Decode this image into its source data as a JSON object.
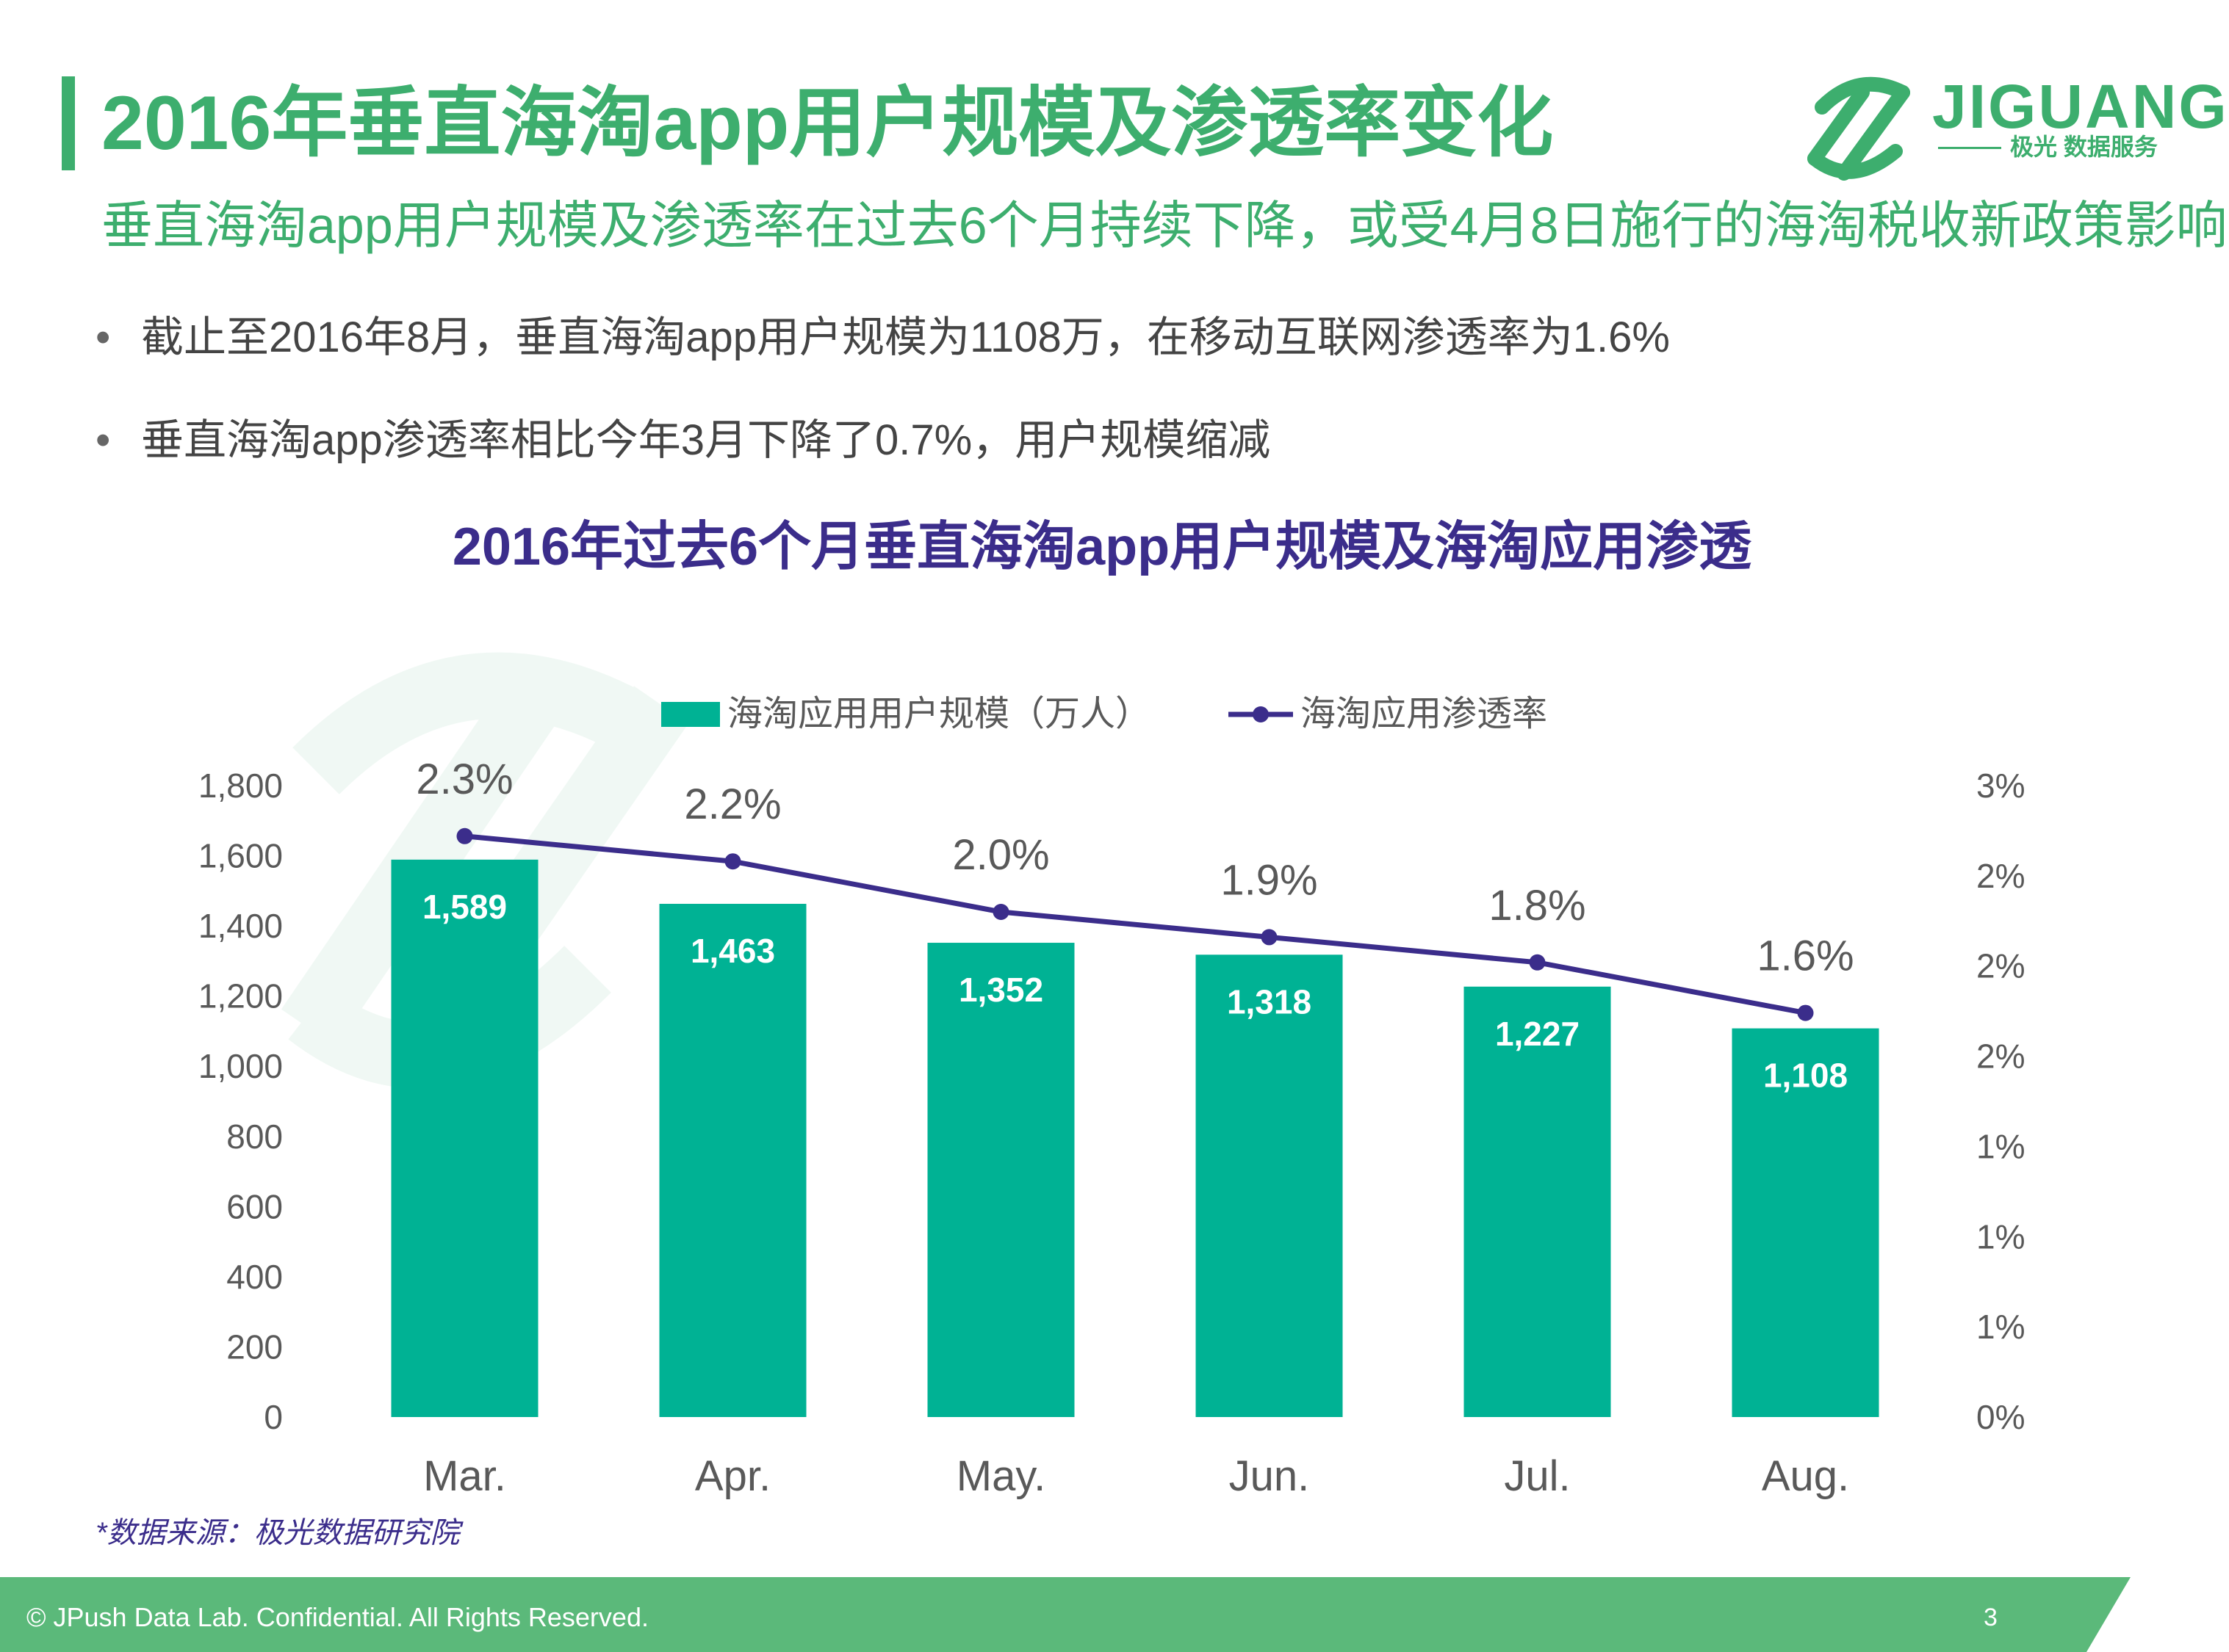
{
  "header": {
    "title": "2016年垂直海淘app用户规模及渗透率变化",
    "subtitle": "垂直海淘app用户规模及渗透率在过去6个月持续下降，或受4月8日施行的海淘税收新政策影响",
    "logo_text": "JIGUANG",
    "logo_subtext": "极光 数据服务"
  },
  "bullets": [
    "截止至2016年8月，垂直海淘app用户规模为1108万，在移动互联网渗透率为1.6%",
    "垂直海淘app渗透率相比今年3月下降了0.7%，用户规模缩减"
  ],
  "bullet_marker": "•",
  "source": "*数据来源：极光数据研究院",
  "footer": {
    "copyright": "© JPush Data Lab. Confidential. All Rights Reserved.",
    "page": "3"
  },
  "colors": {
    "brand_green": "#3dae6e",
    "bar": "#00b294",
    "line": "#3b2d8b",
    "axis_text": "#595959"
  },
  "chart_data": {
    "type": "bar",
    "title": "2016年过去6个月垂直海淘app用户规模及海淘应用渗透",
    "categories": [
      "Mar.",
      "Apr.",
      "May.",
      "Jun.",
      "Jul.",
      "Aug."
    ],
    "series": [
      {
        "name": "海淘应用用户规模（万人）",
        "type": "bar",
        "axis": "left",
        "values": [
          1589,
          1463,
          1352,
          1318,
          1227,
          1108
        ],
        "labels": [
          "1,589",
          "1,463",
          "1,352",
          "1,318",
          "1,227",
          "1,108"
        ]
      },
      {
        "name": "海淘应用渗透率",
        "type": "line",
        "axis": "right",
        "values": [
          2.3,
          2.2,
          2.0,
          1.9,
          1.8,
          1.6
        ],
        "labels": [
          "2.3%",
          "2.2%",
          "2.0%",
          "1.9%",
          "1.8%",
          "1.6%"
        ]
      }
    ],
    "y_left": {
      "min": 0,
      "max": 1800,
      "ticks": [
        "0",
        "200",
        "400",
        "600",
        "800",
        "1,000",
        "1,200",
        "1,400",
        "1,600",
        "1,800"
      ]
    },
    "y_right": {
      "min": 0,
      "max": 2.5,
      "ticks": [
        "0%",
        "1%",
        "1%",
        "1%",
        "2%",
        "2%",
        "2%",
        "3%"
      ]
    },
    "legend_position": "top-center",
    "grid": false
  }
}
